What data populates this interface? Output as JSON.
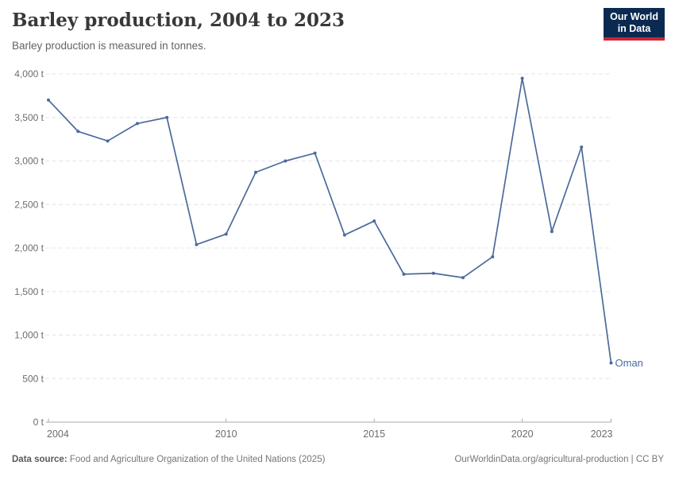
{
  "header": {
    "title": "Barley production, 2004 to 2023",
    "subtitle": "Barley production is measured in tonnes."
  },
  "logo": {
    "line1": "Our World",
    "line2": "in Data",
    "bg_color": "#0B2A51",
    "accent_color": "#CB2535"
  },
  "chart_data": {
    "type": "line",
    "title": "Barley production, 2004 to 2023",
    "unit": "tonnes",
    "entity": "Oman",
    "x": [
      2004,
      2005,
      2006,
      2007,
      2008,
      2009,
      2010,
      2011,
      2012,
      2013,
      2014,
      2015,
      2016,
      2017,
      2018,
      2019,
      2020,
      2021,
      2022,
      2023
    ],
    "series": [
      {
        "name": "Oman",
        "values": [
          3700,
          3340,
          3230,
          3430,
          3500,
          2040,
          2160,
          2870,
          3000,
          3090,
          2150,
          2310,
          1700,
          1710,
          1660,
          1900,
          3950,
          2190,
          3160,
          680
        ]
      }
    ],
    "xlim": [
      2004,
      2023
    ],
    "ylim": [
      0,
      4000
    ],
    "grid": true,
    "legend_position": "end-of-line-label",
    "line_color": "#4C6A9C",
    "x_ticks": [
      {
        "value": 2004,
        "label": "2004"
      },
      {
        "value": 2010,
        "label": "2010"
      },
      {
        "value": 2015,
        "label": "2015"
      },
      {
        "value": 2020,
        "label": "2020"
      },
      {
        "value": 2023,
        "label": "2023"
      }
    ],
    "y_ticks": [
      {
        "value": 0,
        "label": "0 t"
      },
      {
        "value": 500,
        "label": "500 t"
      },
      {
        "value": 1000,
        "label": "1,000 t"
      },
      {
        "value": 1500,
        "label": "1,500 t"
      },
      {
        "value": 2000,
        "label": "2,000 t"
      },
      {
        "value": 2500,
        "label": "2,500 t"
      },
      {
        "value": 3000,
        "label": "3,000 t"
      },
      {
        "value": 3500,
        "label": "3,500 t"
      },
      {
        "value": 4000,
        "label": "4,000 t"
      }
    ]
  },
  "footer": {
    "source_label": "Data source:",
    "source_text": "Food and Agriculture Organization of the United Nations (2025)",
    "citation": "OurWorldinData.org/agricultural-production | CC BY"
  }
}
